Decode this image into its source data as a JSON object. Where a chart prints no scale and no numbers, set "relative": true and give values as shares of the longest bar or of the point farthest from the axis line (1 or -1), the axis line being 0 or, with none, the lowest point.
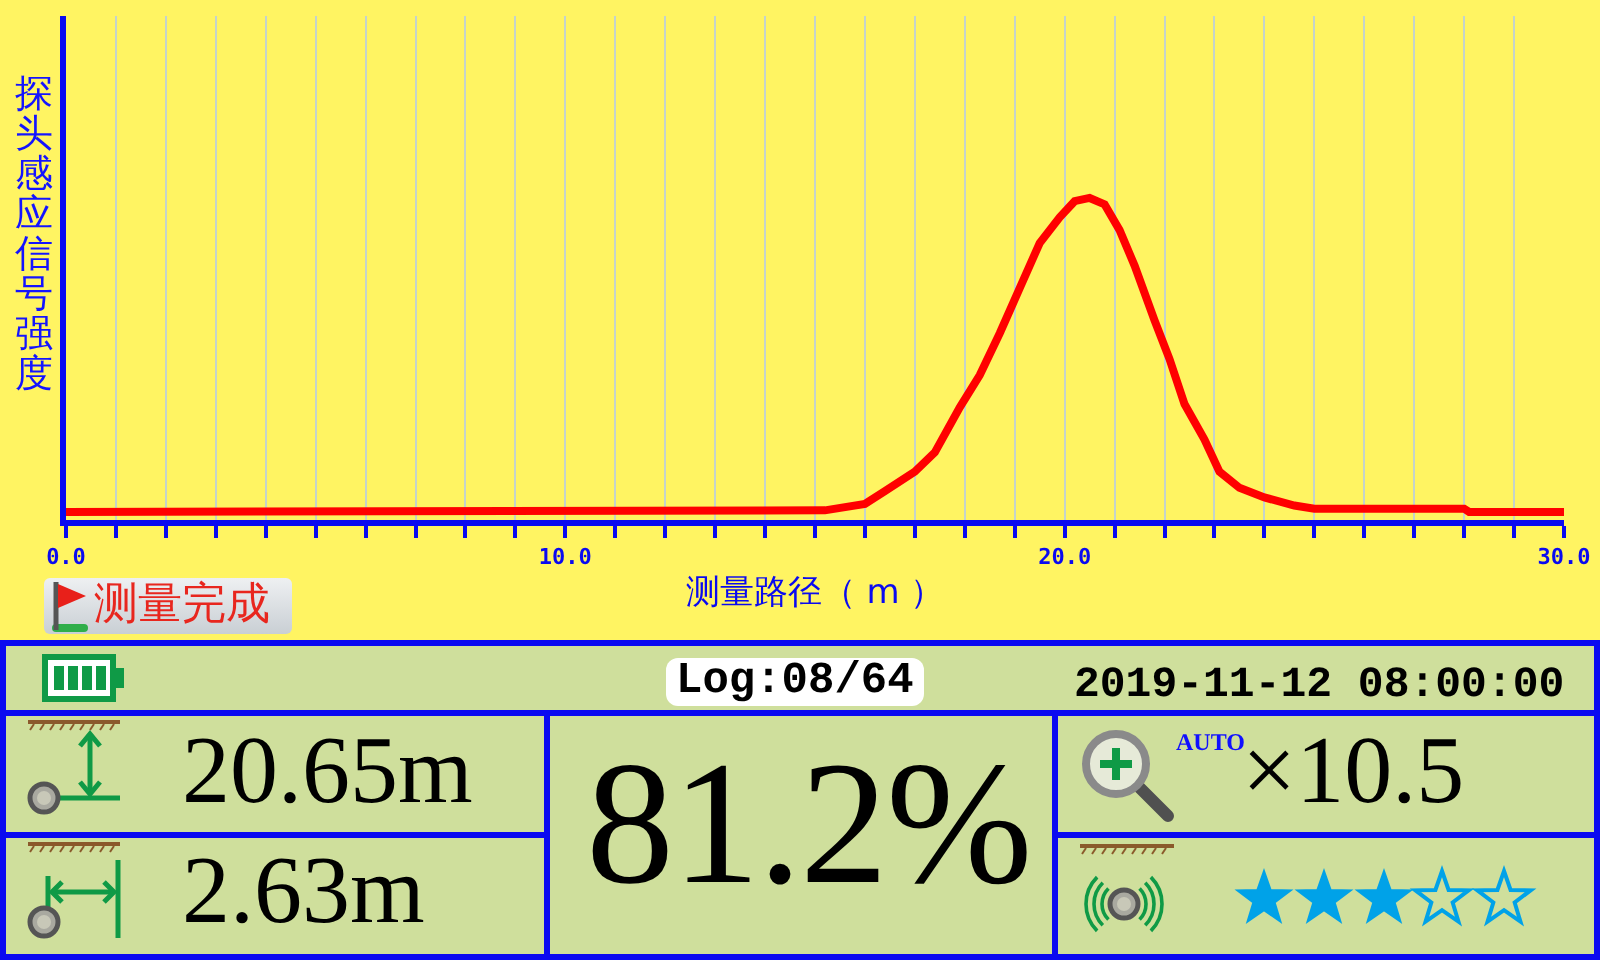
{
  "chart_data": [
    {
      "type": "line",
      "xlabel": "测量路径（ m ）",
      "ylabel": "探头感应信号强度",
      "relative": true,
      "x": [
        0,
        15.2,
        16.0,
        16.4,
        17.0,
        17.4,
        17.9,
        18.3,
        18.7,
        19.1,
        19.5,
        19.9,
        20.2,
        20.5,
        20.8,
        21.1,
        21.4,
        21.8,
        22.1,
        22.4,
        22.8,
        23.1,
        23.5,
        24.0,
        24.6,
        25.0,
        28.0,
        28.1,
        30.0
      ],
      "series": [
        {
          "color": "#ff0000",
          "values": [
            0.025,
            0.03,
            0.05,
            0.09,
            0.15,
            0.21,
            0.35,
            0.45,
            0.58,
            0.72,
            0.86,
            0.94,
            0.99,
            1.0,
            0.98,
            0.9,
            0.79,
            0.62,
            0.5,
            0.36,
            0.25,
            0.15,
            0.1,
            0.07,
            0.045,
            0.035,
            0.035,
            0.025,
            0.025
          ]
        }
      ],
      "xlim": [
        0,
        30
      ],
      "xticks": [
        {
          "value": 0,
          "label": "0.0"
        },
        {
          "value": 1,
          "label": null
        },
        {
          "value": 2,
          "label": null
        },
        {
          "value": 3,
          "label": null
        },
        {
          "value": 4,
          "label": null
        },
        {
          "value": 5,
          "label": null
        },
        {
          "value": 6,
          "label": null
        },
        {
          "value": 7,
          "label": null
        },
        {
          "value": 8,
          "label": null
        },
        {
          "value": 9,
          "label": null
        },
        {
          "value": 10,
          "label": "10.0"
        },
        {
          "value": 11,
          "label": null
        },
        {
          "value": 12,
          "label": null
        },
        {
          "value": 13,
          "label": null
        },
        {
          "value": 14,
          "label": null
        },
        {
          "value": 15,
          "label": null
        },
        {
          "value": 16,
          "label": null
        },
        {
          "value": 17,
          "label": null
        },
        {
          "value": 18,
          "label": null
        },
        {
          "value": 19,
          "label": null
        },
        {
          "value": 20,
          "label": "20.0"
        },
        {
          "value": 21,
          "label": null
        },
        {
          "value": 22,
          "label": null
        },
        {
          "value": 23,
          "label": null
        },
        {
          "value": 24,
          "label": null
        },
        {
          "value": 25,
          "label": null
        },
        {
          "value": 26,
          "label": null
        },
        {
          "value": 27,
          "label": null
        },
        {
          "value": 28,
          "label": null
        },
        {
          "value": 29,
          "label": null
        },
        {
          "value": 30,
          "label": "30.0"
        }
      ],
      "grid": "x",
      "annotations": [
        "测量完成"
      ]
    },
    {
      "type": "other",
      "annotations": [
        "Log:08/64",
        "2019-11-12 08:00:00",
        "20.65m",
        "2.63m",
        "81.2%",
        "AUTO",
        "×10.5"
      ]
    }
  ]
}
